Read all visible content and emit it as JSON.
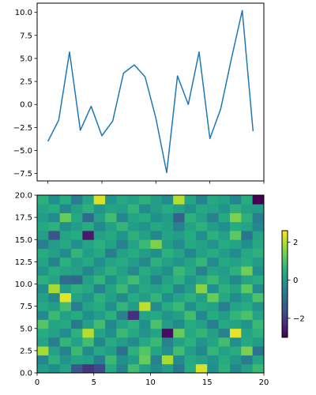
{
  "chart_data": [
    {
      "type": "line",
      "x": [
        0,
        1,
        2,
        3,
        4,
        5,
        6,
        7,
        8,
        9,
        10,
        11,
        12,
        13,
        14,
        15,
        16,
        17,
        18,
        19
      ],
      "values": [
        -4.0,
        -1.7,
        5.7,
        -2.8,
        -0.2,
        -3.4,
        -1.8,
        3.4,
        4.3,
        3.0,
        -1.5,
        -7.4,
        3.1,
        0.0,
        5.7,
        -3.7,
        -0.5,
        5.0,
        10.2,
        -2.9
      ],
      "color": "#1f77b4",
      "xlim": [
        -1,
        20
      ],
      "ylim": [
        -8.3,
        11.0
      ],
      "yticks": [
        -7.5,
        -5.0,
        -2.5,
        0.0,
        2.5,
        5.0,
        7.5,
        10.0
      ],
      "ytick_labels": [
        "−7.5",
        "−5.0",
        "−2.5",
        "0.0",
        "2.5",
        "5.0",
        "7.5",
        "10.0"
      ],
      "xticks": [
        0,
        5,
        10,
        15,
        20
      ],
      "xtick_labels_shown": false
    },
    {
      "type": "heatmap",
      "colormap": "viridis",
      "rows": 20,
      "cols": 20,
      "row_order": "bottom-to-top",
      "xlim": [
        0,
        20
      ],
      "ylim": [
        0,
        20
      ],
      "xticks": [
        0,
        5,
        10,
        15,
        20
      ],
      "xtick_labels": [
        "0",
        "5",
        "10",
        "15",
        "20"
      ],
      "yticks": [
        0.0,
        2.5,
        5.0,
        7.5,
        10.0,
        12.5,
        15.0,
        17.5,
        20.0
      ],
      "ytick_labels": [
        "0.0",
        "2.5",
        "5.0",
        "7.5",
        "10.0",
        "12.5",
        "15.0",
        "17.5",
        "20.0"
      ],
      "values": [
        [
          0.1,
          -0.2,
          0.3,
          -1.4,
          -2.1,
          -1.7,
          0.4,
          -0.5,
          0.9,
          0.2,
          -0.3,
          0.1,
          -0.7,
          0.5,
          2.3,
          -0.2,
          0.6,
          -0.4,
          0.2,
          0.8
        ],
        [
          -0.4,
          0.6,
          -0.1,
          0.3,
          0.2,
          -0.6,
          0.8,
          -0.2,
          0.1,
          1.3,
          -0.5,
          1.9,
          -0.3,
          0.4,
          0.2,
          -0.1,
          0.5,
          0.0,
          -0.6,
          0.3
        ],
        [
          1.9,
          0.2,
          -0.5,
          0.8,
          -0.3,
          0.4,
          0.1,
          -0.9,
          0.6,
          1.1,
          0.3,
          -0.2,
          0.9,
          0.1,
          -0.4,
          0.7,
          0.2,
          0.5,
          1.5,
          -0.8
        ],
        [
          0.3,
          -0.6,
          0.7,
          0.2,
          0.9,
          -0.4,
          0.5,
          0.1,
          -0.3,
          0.4,
          0.8,
          -0.5,
          0.2,
          0.6,
          -0.1,
          0.3,
          0.9,
          -0.2,
          0.4,
          0.1
        ],
        [
          0.5,
          0.2,
          -0.3,
          0.6,
          2.0,
          0.3,
          -0.2,
          0.8,
          0.4,
          -0.1,
          0.3,
          -2.8,
          1.3,
          0.4,
          0.7,
          0.2,
          -0.5,
          2.4,
          0.3,
          0.6
        ],
        [
          1.1,
          0.3,
          0.4,
          -0.7,
          0.2,
          0.9,
          -0.4,
          0.3,
          0.6,
          -0.2,
          1.0,
          0.1,
          -0.3,
          0.5,
          0.2,
          -0.6,
          0.4,
          0.3,
          -0.1,
          0.8
        ],
        [
          -0.3,
          0.8,
          0.2,
          0.5,
          -0.2,
          0.1,
          0.6,
          -0.5,
          -2.2,
          0.3,
          0.4,
          -0.1,
          0.2,
          0.9,
          -0.4,
          0.5,
          0.1,
          0.7,
          1.0,
          0.3
        ],
        [
          0.4,
          0.1,
          0.9,
          -0.6,
          0.3,
          0.5,
          -0.2,
          0.7,
          0.1,
          2.1,
          -0.3,
          0.5,
          0.8,
          -0.2,
          0.4,
          0.2,
          -0.6,
          0.3,
          0.5,
          -0.1
        ],
        [
          0.2,
          -0.4,
          2.4,
          0.3,
          -0.1,
          0.6,
          0.2,
          -0.3,
          0.5,
          0.1,
          0.7,
          -0.2,
          0.3,
          0.6,
          0.1,
          1.3,
          0.4,
          -0.3,
          0.2,
          1.0
        ],
        [
          -0.2,
          1.9,
          0.1,
          0.6,
          0.4,
          -0.5,
          0.3,
          0.8,
          -0.1,
          0.4,
          0.2,
          0.5,
          -0.4,
          0.1,
          1.6,
          -0.2,
          0.6,
          0.3,
          1.2,
          -0.3
        ],
        [
          0.6,
          0.3,
          -1.0,
          -1.1,
          0.2,
          0.7,
          -0.2,
          0.4,
          0.9,
          0.3,
          -0.5,
          0.2,
          0.6,
          -0.1,
          0.4,
          0.8,
          0.2,
          -0.4,
          0.3,
          0.5
        ],
        [
          -0.1,
          0.5,
          0.3,
          0.2,
          -0.4,
          0.1,
          0.6,
          0.2,
          -0.3,
          0.5,
          0.1,
          -0.2,
          0.8,
          0.4,
          -0.5,
          0.3,
          0.1,
          0.6,
          1.4,
          -0.2
        ],
        [
          0.3,
          -0.5,
          0.6,
          0.1,
          0.4,
          -0.2,
          0.3,
          0.5,
          0.1,
          -0.4,
          0.6,
          0.2,
          -0.1,
          0.3,
          0.7,
          -0.3,
          0.4,
          0.2,
          0.5,
          0.1
        ],
        [
          0.5,
          0.2,
          -0.3,
          0.7,
          0.1,
          0.4,
          -0.6,
          0.2,
          0.5,
          0.1,
          -0.2,
          0.6,
          0.3,
          -0.4,
          0.2,
          0.5,
          0.1,
          -0.3,
          0.4,
          0.6
        ],
        [
          -0.6,
          0.1,
          0.4,
          -0.2,
          0.3,
          0.6,
          0.2,
          -0.5,
          0.3,
          0.8,
          1.5,
          0.1,
          -0.3,
          0.4,
          0.2,
          -0.1,
          0.5,
          0.3,
          -0.2,
          0.4
        ],
        [
          0.2,
          -1.5,
          0.3,
          0.5,
          -2.6,
          0.2,
          0.4,
          -0.1,
          0.6,
          0.2,
          -0.4,
          0.3,
          0.1,
          0.5,
          -0.2,
          0.6,
          0.2,
          1.2,
          -0.8,
          0.3
        ],
        [
          0.4,
          0.6,
          -0.2,
          0.1,
          0.5,
          -0.3,
          0.2,
          0.7,
          0.1,
          -0.1,
          0.4,
          0.2,
          -0.5,
          0.3,
          0.6,
          0.1,
          -0.2,
          0.5,
          0.3,
          -0.4
        ],
        [
          0.1,
          -0.3,
          1.3,
          0.4,
          -1.0,
          0.2,
          0.9,
          -0.4,
          0.3,
          0.5,
          -0.2,
          0.1,
          -1.2,
          0.6,
          0.2,
          -0.5,
          0.4,
          1.5,
          0.6,
          -0.6
        ],
        [
          0.3,
          0.5,
          -0.4,
          0.2,
          0.6,
          -0.1,
          0.3,
          0.2,
          0.7,
          -0.3,
          0.1,
          0.5,
          0.2,
          -0.2,
          0.4,
          0.3,
          -0.1,
          0.6,
          0.2,
          0.1
        ],
        [
          0.6,
          -0.2,
          0.5,
          -0.6,
          0.3,
          2.3,
          -0.1,
          0.4,
          0.2,
          0.6,
          0.1,
          -0.3,
          2.0,
          0.3,
          -0.5,
          0.4,
          0.2,
          -0.4,
          0.5,
          -3.0
        ]
      ]
    },
    {
      "type": "colorbar",
      "colormap": "viridis",
      "range": [
        -3.0,
        2.6
      ],
      "ticks": [
        -2,
        0,
        2
      ],
      "tick_labels": [
        "−2",
        "0",
        "2"
      ]
    }
  ]
}
